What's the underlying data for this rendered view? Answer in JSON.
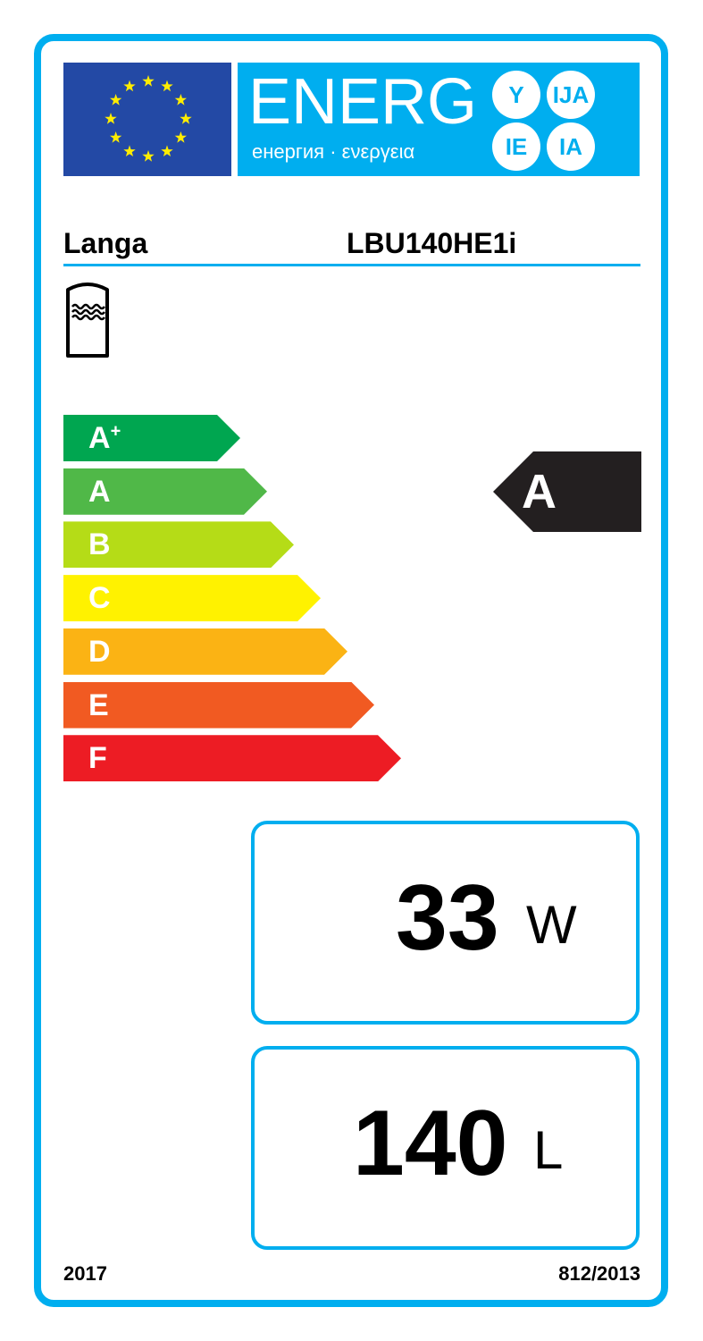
{
  "header": {
    "energy_word": "ENERG",
    "energy_subtitle": "енергия · ενεργεια",
    "suffixes": [
      "Y",
      "IJA",
      "IE",
      "IA"
    ]
  },
  "supplier": "Langa",
  "model": "LBU140HE1i",
  "appliance_icon": "water-storage-tank-icon",
  "scale": [
    {
      "label": "A",
      "sup": "+",
      "color": "#00a650"
    },
    {
      "label": "A",
      "sup": "",
      "color": "#50b848"
    },
    {
      "label": "B",
      "sup": "",
      "color": "#b5dc17"
    },
    {
      "label": "C",
      "sup": "",
      "color": "#fff200"
    },
    {
      "label": "D",
      "sup": "",
      "color": "#fbb314"
    },
    {
      "label": "E",
      "sup": "",
      "color": "#f15a22"
    },
    {
      "label": "F",
      "sup": "",
      "color": "#ed1c24"
    }
  ],
  "rating": "A",
  "standing_loss": {
    "value": "33",
    "unit": "W"
  },
  "volume": {
    "value": "140",
    "unit": "L"
  },
  "footer": {
    "year": "2017",
    "regulation": "812/2013"
  },
  "accent": "#00aeef"
}
